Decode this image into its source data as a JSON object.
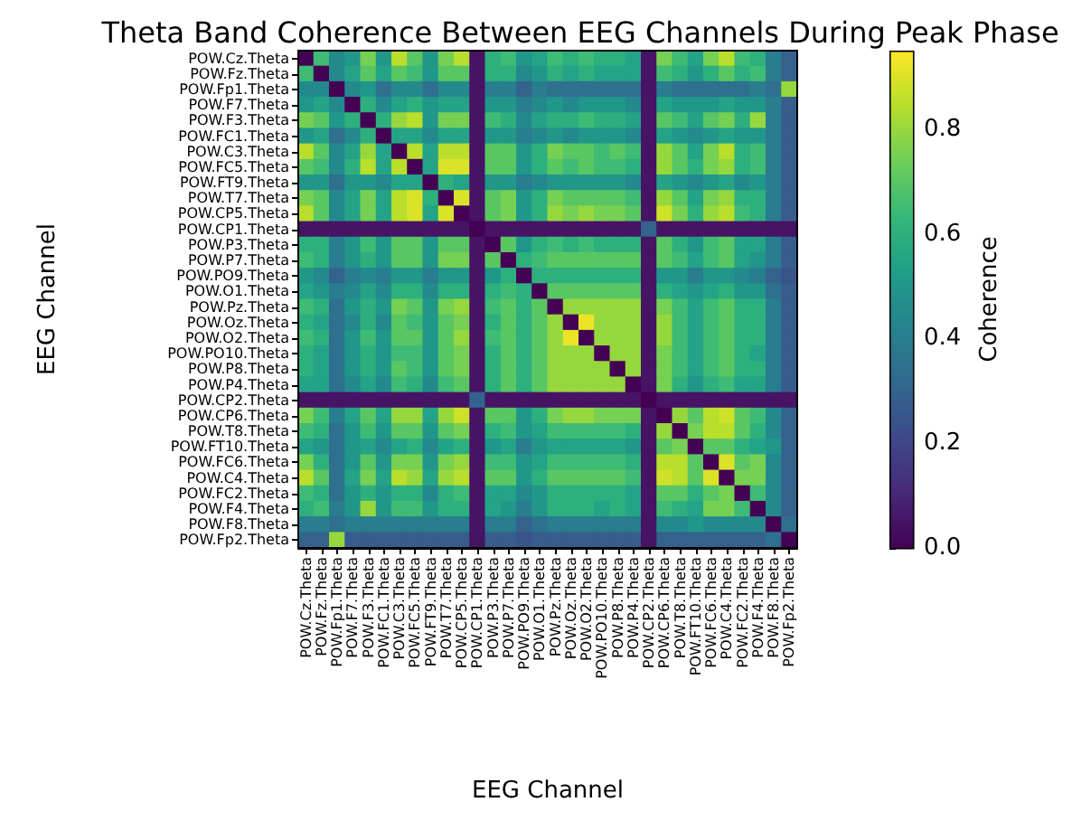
{
  "chart_data": {
    "type": "heatmap",
    "title": "Theta Band Coherence Between EEG Channels During Peak Phase",
    "xlabel": "EEG Channel",
    "ylabel": "EEG Channel",
    "clabel": "Coherence",
    "categories": [
      "POW.Cz.Theta",
      "POW.Fz.Theta",
      "POW.Fp1.Theta",
      "POW.F7.Theta",
      "POW.F3.Theta",
      "POW.FC1.Theta",
      "POW.C3.Theta",
      "POW.FC5.Theta",
      "POW.FT9.Theta",
      "POW.T7.Theta",
      "POW.CP5.Theta",
      "POW.CP1.Theta",
      "POW.P3.Theta",
      "POW.P7.Theta",
      "POW.PO9.Theta",
      "POW.O1.Theta",
      "POW.Pz.Theta",
      "POW.Oz.Theta",
      "POW.O2.Theta",
      "POW.PO10.Theta",
      "POW.P8.Theta",
      "POW.P4.Theta",
      "POW.CP2.Theta",
      "POW.CP6.Theta",
      "POW.T8.Theta",
      "POW.FT10.Theta",
      "POW.FC6.Theta",
      "POW.C4.Theta",
      "POW.FC2.Theta",
      "POW.F4.Theta",
      "POW.F8.Theta",
      "POW.Fp2.Theta"
    ],
    "y_categories": [
      "POW.Cz.Theta",
      "POW.Fz.Theta",
      "POW.Fp1.Theta",
      "POW.F7.Theta",
      "POW.F3.Theta",
      "POW.FC1.Theta",
      "POW.C3.Theta",
      "POW.FC5.Theta",
      "POW.FT9.Theta",
      "POW.T7.Theta",
      "POW.CP5.Theta",
      "POW.CP1.Theta",
      "POW.P3.Theta",
      "POW.P7.Theta",
      "POW.PO9.Theta",
      "POW.O1.Theta",
      "POW.Pz.Theta",
      "POW.Oz.Theta",
      "POW.O2.Theta",
      "POW.PO10.Theta",
      "POW.P8.Theta",
      "POW.P4.Theta",
      "POW.CP2.Theta",
      "POW.CP6.Theta",
      "POW.T8.Theta",
      "POW.FT10.Theta",
      "POW.FC6.Theta",
      "POW.C4.Theta",
      "POW.FC2.Theta",
      "POW.F4.Theta",
      "POW.F8.Theta",
      "POW.Fp2.Theta"
    ],
    "cells": [
      [
        0,
        0.65,
        0.45,
        0.5,
        0.75,
        0.5,
        0.85,
        0.7,
        0.5,
        0.75,
        0.85,
        0.05,
        0.6,
        0.65,
        0.5,
        0.55,
        0.65,
        0.6,
        0.65,
        0.6,
        0.6,
        0.55,
        0.05,
        0.75,
        0.65,
        0.55,
        0.75,
        0.85,
        0.65,
        0.6,
        0.4,
        0.3
      ],
      [
        0.65,
        0,
        0.45,
        0.55,
        0.7,
        0.55,
        0.7,
        0.65,
        0.5,
        0.7,
        0.7,
        0.05,
        0.6,
        0.6,
        0.45,
        0.5,
        0.6,
        0.55,
        0.6,
        0.55,
        0.55,
        0.55,
        0.05,
        0.65,
        0.6,
        0.5,
        0.6,
        0.7,
        0.6,
        0.65,
        0.4,
        0.3
      ],
      [
        0.45,
        0.45,
        0,
        0.45,
        0.5,
        0.35,
        0.45,
        0.45,
        0.35,
        0.45,
        0.45,
        0.05,
        0.4,
        0.4,
        0.3,
        0.4,
        0.35,
        0.35,
        0.35,
        0.35,
        0.35,
        0.35,
        0.05,
        0.4,
        0.35,
        0.35,
        0.35,
        0.35,
        0.35,
        0.4,
        0.35,
        0.8
      ],
      [
        0.5,
        0.55,
        0.45,
        0,
        0.6,
        0.45,
        0.55,
        0.6,
        0.5,
        0.55,
        0.55,
        0.05,
        0.5,
        0.5,
        0.4,
        0.45,
        0.5,
        0.45,
        0.5,
        0.5,
        0.5,
        0.45,
        0.05,
        0.55,
        0.5,
        0.5,
        0.5,
        0.55,
        0.5,
        0.5,
        0.4,
        0.28
      ],
      [
        0.75,
        0.7,
        0.5,
        0.6,
        0,
        0.6,
        0.8,
        0.85,
        0.5,
        0.75,
        0.75,
        0.05,
        0.65,
        0.6,
        0.45,
        0.55,
        0.6,
        0.6,
        0.65,
        0.6,
        0.6,
        0.55,
        0.05,
        0.7,
        0.65,
        0.55,
        0.7,
        0.75,
        0.6,
        0.8,
        0.4,
        0.28
      ],
      [
        0.5,
        0.55,
        0.35,
        0.45,
        0.6,
        0,
        0.55,
        0.55,
        0.45,
        0.55,
        0.55,
        0.05,
        0.5,
        0.5,
        0.4,
        0.45,
        0.5,
        0.45,
        0.5,
        0.5,
        0.5,
        0.45,
        0.05,
        0.55,
        0.5,
        0.45,
        0.5,
        0.55,
        0.5,
        0.5,
        0.4,
        0.28
      ],
      [
        0.85,
        0.7,
        0.45,
        0.55,
        0.8,
        0.55,
        0,
        0.85,
        0.55,
        0.85,
        0.85,
        0.05,
        0.7,
        0.7,
        0.5,
        0.6,
        0.75,
        0.7,
        0.7,
        0.65,
        0.7,
        0.65,
        0.05,
        0.8,
        0.7,
        0.55,
        0.75,
        0.85,
        0.6,
        0.65,
        0.4,
        0.28
      ],
      [
        0.7,
        0.65,
        0.45,
        0.6,
        0.85,
        0.55,
        0.85,
        0,
        0.55,
        0.9,
        0.9,
        0.05,
        0.7,
        0.7,
        0.5,
        0.6,
        0.7,
        0.65,
        0.7,
        0.65,
        0.65,
        0.6,
        0.05,
        0.8,
        0.7,
        0.6,
        0.75,
        0.8,
        0.6,
        0.65,
        0.4,
        0.28
      ],
      [
        0.5,
        0.5,
        0.35,
        0.5,
        0.5,
        0.45,
        0.55,
        0.55,
        0,
        0.6,
        0.55,
        0.05,
        0.5,
        0.5,
        0.4,
        0.45,
        0.5,
        0.5,
        0.5,
        0.5,
        0.5,
        0.45,
        0.05,
        0.55,
        0.5,
        0.45,
        0.5,
        0.55,
        0.45,
        0.5,
        0.4,
        0.28
      ],
      [
        0.75,
        0.7,
        0.45,
        0.55,
        0.75,
        0.55,
        0.85,
        0.9,
        0.6,
        0,
        0.9,
        0.05,
        0.7,
        0.75,
        0.5,
        0.6,
        0.75,
        0.7,
        0.7,
        0.7,
        0.7,
        0.65,
        0.05,
        0.8,
        0.7,
        0.55,
        0.75,
        0.8,
        0.6,
        0.6,
        0.4,
        0.28
      ],
      [
        0.85,
        0.7,
        0.45,
        0.55,
        0.75,
        0.55,
        0.85,
        0.9,
        0.55,
        0.9,
        0,
        0.05,
        0.7,
        0.75,
        0.5,
        0.6,
        0.8,
        0.75,
        0.8,
        0.75,
        0.75,
        0.7,
        0.05,
        0.88,
        0.75,
        0.6,
        0.8,
        0.85,
        0.65,
        0.6,
        0.4,
        0.28
      ],
      [
        0.05,
        0.05,
        0.05,
        0.05,
        0.05,
        0.05,
        0.05,
        0.05,
        0.05,
        0.05,
        0.05,
        0,
        0.05,
        0.05,
        0.05,
        0.05,
        0.05,
        0.05,
        0.05,
        0.05,
        0.05,
        0.05,
        0.3,
        0.05,
        0.05,
        0.05,
        0.05,
        0.05,
        0.05,
        0.05,
        0.05,
        0.05
      ],
      [
        0.6,
        0.6,
        0.4,
        0.5,
        0.65,
        0.5,
        0.7,
        0.7,
        0.5,
        0.7,
        0.7,
        0.05,
        0,
        0.7,
        0.5,
        0.6,
        0.65,
        0.6,
        0.65,
        0.6,
        0.6,
        0.6,
        0.05,
        0.7,
        0.6,
        0.5,
        0.65,
        0.7,
        0.55,
        0.55,
        0.4,
        0.28
      ],
      [
        0.65,
        0.6,
        0.4,
        0.5,
        0.6,
        0.5,
        0.7,
        0.7,
        0.5,
        0.75,
        0.75,
        0.05,
        0.7,
        0,
        0.6,
        0.65,
        0.7,
        0.7,
        0.7,
        0.7,
        0.7,
        0.7,
        0.05,
        0.7,
        0.65,
        0.55,
        0.65,
        0.7,
        0.55,
        0.5,
        0.4,
        0.28
      ],
      [
        0.5,
        0.45,
        0.3,
        0.4,
        0.45,
        0.4,
        0.5,
        0.5,
        0.4,
        0.5,
        0.5,
        0.05,
        0.5,
        0.6,
        0,
        0.6,
        0.6,
        0.6,
        0.6,
        0.6,
        0.6,
        0.6,
        0.05,
        0.5,
        0.5,
        0.4,
        0.5,
        0.5,
        0.45,
        0.4,
        0.3,
        0.25
      ],
      [
        0.55,
        0.5,
        0.4,
        0.45,
        0.55,
        0.45,
        0.6,
        0.6,
        0.45,
        0.6,
        0.6,
        0.05,
        0.6,
        0.65,
        0.6,
        0,
        0.7,
        0.7,
        0.7,
        0.7,
        0.7,
        0.7,
        0.05,
        0.6,
        0.55,
        0.5,
        0.55,
        0.6,
        0.5,
        0.5,
        0.35,
        0.28
      ],
      [
        0.65,
        0.6,
        0.35,
        0.5,
        0.6,
        0.5,
        0.75,
        0.7,
        0.5,
        0.75,
        0.8,
        0.05,
        0.65,
        0.7,
        0.6,
        0.7,
        0,
        0.8,
        0.8,
        0.8,
        0.8,
        0.8,
        0.05,
        0.75,
        0.65,
        0.55,
        0.65,
        0.7,
        0.6,
        0.6,
        0.4,
        0.28
      ],
      [
        0.6,
        0.55,
        0.35,
        0.45,
        0.6,
        0.45,
        0.7,
        0.65,
        0.5,
        0.7,
        0.75,
        0.05,
        0.6,
        0.7,
        0.6,
        0.7,
        0.8,
        0,
        0.92,
        0.8,
        0.8,
        0.8,
        0.05,
        0.8,
        0.65,
        0.55,
        0.65,
        0.7,
        0.6,
        0.6,
        0.4,
        0.28
      ],
      [
        0.65,
        0.6,
        0.35,
        0.5,
        0.65,
        0.5,
        0.7,
        0.7,
        0.5,
        0.7,
        0.8,
        0.05,
        0.65,
        0.7,
        0.6,
        0.7,
        0.8,
        0.92,
        0,
        0.8,
        0.8,
        0.8,
        0.05,
        0.8,
        0.65,
        0.55,
        0.65,
        0.7,
        0.6,
        0.6,
        0.4,
        0.28
      ],
      [
        0.6,
        0.55,
        0.35,
        0.5,
        0.6,
        0.5,
        0.65,
        0.65,
        0.5,
        0.7,
        0.75,
        0.05,
        0.6,
        0.7,
        0.6,
        0.7,
        0.8,
        0.8,
        0.8,
        0,
        0.8,
        0.8,
        0.05,
        0.75,
        0.65,
        0.55,
        0.65,
        0.7,
        0.6,
        0.55,
        0.4,
        0.28
      ],
      [
        0.6,
        0.55,
        0.35,
        0.5,
        0.6,
        0.5,
        0.7,
        0.65,
        0.5,
        0.7,
        0.75,
        0.05,
        0.6,
        0.7,
        0.6,
        0.7,
        0.8,
        0.8,
        0.8,
        0.8,
        0,
        0.8,
        0.05,
        0.75,
        0.65,
        0.55,
        0.65,
        0.7,
        0.6,
        0.6,
        0.4,
        0.28
      ],
      [
        0.55,
        0.55,
        0.35,
        0.45,
        0.55,
        0.45,
        0.65,
        0.6,
        0.45,
        0.65,
        0.7,
        0.05,
        0.6,
        0.7,
        0.6,
        0.7,
        0.8,
        0.8,
        0.8,
        0.8,
        0.8,
        0,
        0.05,
        0.75,
        0.6,
        0.5,
        0.6,
        0.65,
        0.55,
        0.55,
        0.4,
        0.28
      ],
      [
        0.05,
        0.05,
        0.05,
        0.05,
        0.05,
        0.05,
        0.05,
        0.05,
        0.05,
        0.05,
        0.05,
        0.3,
        0.05,
        0.05,
        0.05,
        0.05,
        0.05,
        0.05,
        0.05,
        0.05,
        0.05,
        0.05,
        0,
        0.05,
        0.05,
        0.05,
        0.05,
        0.05,
        0.05,
        0.05,
        0.05,
        0.05
      ],
      [
        0.75,
        0.65,
        0.4,
        0.55,
        0.7,
        0.55,
        0.8,
        0.8,
        0.55,
        0.8,
        0.88,
        0.05,
        0.7,
        0.7,
        0.5,
        0.6,
        0.75,
        0.8,
        0.8,
        0.75,
        0.75,
        0.75,
        0.05,
        0,
        0.8,
        0.7,
        0.85,
        0.88,
        0.7,
        0.65,
        0.45,
        0.3
      ],
      [
        0.65,
        0.6,
        0.35,
        0.5,
        0.65,
        0.5,
        0.7,
        0.7,
        0.5,
        0.7,
        0.75,
        0.05,
        0.6,
        0.65,
        0.5,
        0.55,
        0.65,
        0.65,
        0.65,
        0.65,
        0.65,
        0.6,
        0.05,
        0.8,
        0,
        0.75,
        0.85,
        0.85,
        0.7,
        0.6,
        0.45,
        0.3
      ],
      [
        0.55,
        0.5,
        0.35,
        0.5,
        0.55,
        0.45,
        0.55,
        0.6,
        0.45,
        0.55,
        0.6,
        0.05,
        0.5,
        0.55,
        0.4,
        0.5,
        0.55,
        0.55,
        0.55,
        0.55,
        0.55,
        0.5,
        0.05,
        0.7,
        0.75,
        0,
        0.7,
        0.7,
        0.6,
        0.55,
        0.5,
        0.3
      ],
      [
        0.75,
        0.6,
        0.35,
        0.5,
        0.7,
        0.5,
        0.75,
        0.75,
        0.5,
        0.75,
        0.8,
        0.05,
        0.65,
        0.65,
        0.5,
        0.55,
        0.65,
        0.65,
        0.65,
        0.65,
        0.65,
        0.6,
        0.05,
        0.85,
        0.85,
        0.7,
        0,
        0.9,
        0.7,
        0.75,
        0.45,
        0.3
      ],
      [
        0.85,
        0.7,
        0.35,
        0.55,
        0.75,
        0.55,
        0.85,
        0.8,
        0.55,
        0.8,
        0.85,
        0.05,
        0.7,
        0.7,
        0.5,
        0.6,
        0.7,
        0.7,
        0.7,
        0.7,
        0.7,
        0.65,
        0.05,
        0.88,
        0.85,
        0.7,
        0.9,
        0,
        0.75,
        0.75,
        0.45,
        0.3
      ],
      [
        0.65,
        0.6,
        0.35,
        0.5,
        0.6,
        0.5,
        0.6,
        0.6,
        0.45,
        0.6,
        0.65,
        0.05,
        0.55,
        0.55,
        0.45,
        0.5,
        0.6,
        0.6,
        0.6,
        0.6,
        0.6,
        0.55,
        0.05,
        0.7,
        0.7,
        0.6,
        0.7,
        0.75,
        0,
        0.65,
        0.45,
        0.3
      ],
      [
        0.6,
        0.65,
        0.4,
        0.5,
        0.8,
        0.5,
        0.65,
        0.65,
        0.5,
        0.6,
        0.6,
        0.05,
        0.55,
        0.5,
        0.4,
        0.5,
        0.6,
        0.6,
        0.6,
        0.55,
        0.6,
        0.55,
        0.05,
        0.65,
        0.6,
        0.55,
        0.75,
        0.75,
        0.65,
        0,
        0.45,
        0.3
      ],
      [
        0.4,
        0.4,
        0.35,
        0.4,
        0.4,
        0.4,
        0.4,
        0.4,
        0.4,
        0.4,
        0.4,
        0.05,
        0.4,
        0.4,
        0.3,
        0.35,
        0.4,
        0.4,
        0.4,
        0.4,
        0.4,
        0.4,
        0.05,
        0.45,
        0.45,
        0.5,
        0.45,
        0.45,
        0.45,
        0.45,
        0,
        0.35
      ],
      [
        0.3,
        0.3,
        0.8,
        0.28,
        0.28,
        0.28,
        0.28,
        0.28,
        0.28,
        0.28,
        0.28,
        0.05,
        0.28,
        0.28,
        0.25,
        0.28,
        0.28,
        0.28,
        0.28,
        0.28,
        0.28,
        0.28,
        0.05,
        0.3,
        0.3,
        0.3,
        0.3,
        0.3,
        0.3,
        0.3,
        0.35,
        0
      ]
    ],
    "clim": [
      0,
      0.95
    ],
    "cticks": [
      {
        "value": 0,
        "label": "0.0"
      },
      0.2,
      0.4,
      0.6,
      0.8
    ]
  }
}
